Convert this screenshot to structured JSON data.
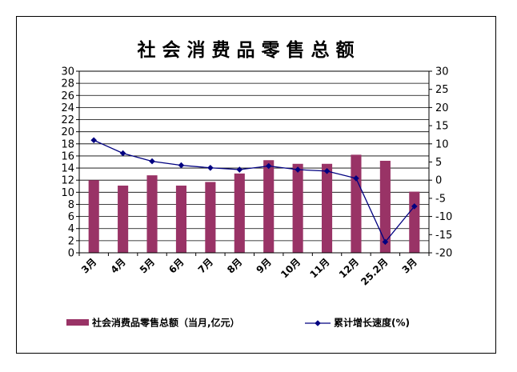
{
  "chart_data": {
    "type": "bar+line",
    "title": "社会消费品零售总额",
    "categories": [
      "3月",
      "4月",
      "5月",
      "6月",
      "7月",
      "8月",
      "9月",
      "10月",
      "11月",
      "12月",
      "25.2月",
      "3月"
    ],
    "series": [
      {
        "name": "社会消费品零售总额（当月,亿元）",
        "type": "bar",
        "axis": "left",
        "values": [
          12.0,
          11.1,
          12.8,
          11.1,
          11.7,
          13.1,
          15.3,
          14.7,
          14.7,
          16.2,
          15.2,
          10.1
        ]
      },
      {
        "name": "累计增长速度(%)",
        "type": "line",
        "axis": "right",
        "values": [
          11.0,
          7.4,
          5.2,
          4.1,
          3.4,
          2.9,
          3.9,
          2.9,
          2.5,
          0.5,
          -17.0,
          -7.2
        ]
      }
    ],
    "left_axis": {
      "min": 0,
      "max": 30,
      "step": 2
    },
    "right_axis": {
      "min": -20,
      "max": 30,
      "step": 5
    },
    "grid": true,
    "legend_position": "bottom",
    "colors": {
      "bar": "#993366",
      "line": "#000080"
    }
  }
}
